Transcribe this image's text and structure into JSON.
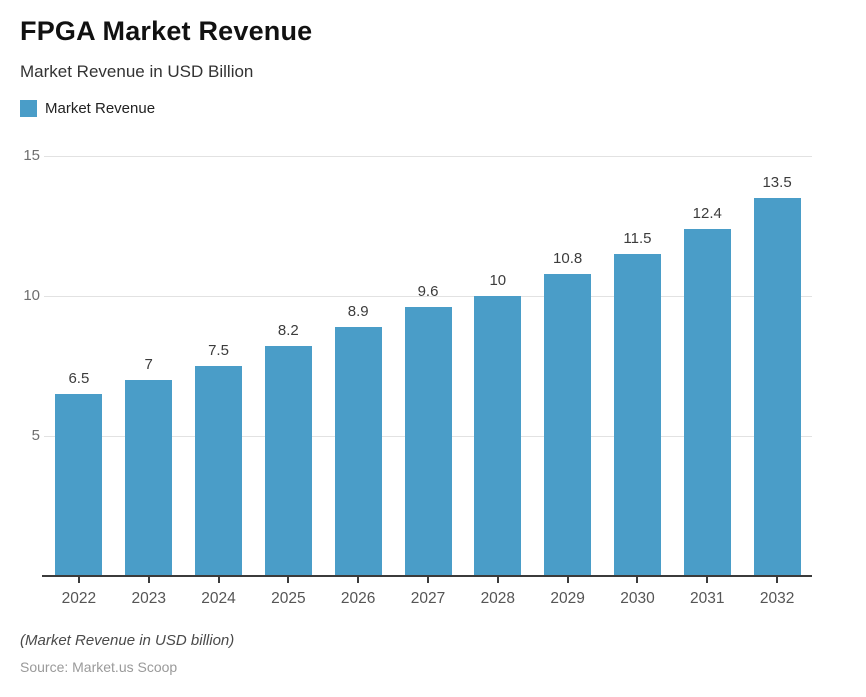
{
  "header": {
    "title": "FPGA Market Revenue",
    "subtitle": "Market Revenue in USD Billion",
    "legend": {
      "label": "Market Revenue",
      "color": "#4a9dc8"
    }
  },
  "chart_data": {
    "type": "bar",
    "title": "FPGA Market Revenue",
    "subtitle": "Market Revenue in USD Billion",
    "categories": [
      "2022",
      "2023",
      "2024",
      "2025",
      "2026",
      "2027",
      "2028",
      "2029",
      "2030",
      "2031",
      "2032"
    ],
    "series": [
      {
        "name": "Market Revenue",
        "values": [
          6.5,
          7,
          7.5,
          8.2,
          8.9,
          9.6,
          10,
          10.8,
          11.5,
          12.4,
          13.5
        ],
        "color": "#4a9dc8"
      }
    ],
    "xlabel": "",
    "ylabel": "",
    "ylim": [
      0,
      15
    ],
    "yticks": [
      5,
      10,
      15
    ],
    "grid": true,
    "bar_labels": true,
    "legend_position": "top-left"
  },
  "footer": {
    "note": "(Market Revenue in USD billion)",
    "source": "Source: Market.us Scoop"
  },
  "colors": {
    "bar": "#4a9dc8",
    "gridline": "#e2e2e2",
    "axis": "#3b3b3b",
    "value_label": "#3c3c3c",
    "x_label": "#555555",
    "y_label": "#6e6e6e"
  }
}
